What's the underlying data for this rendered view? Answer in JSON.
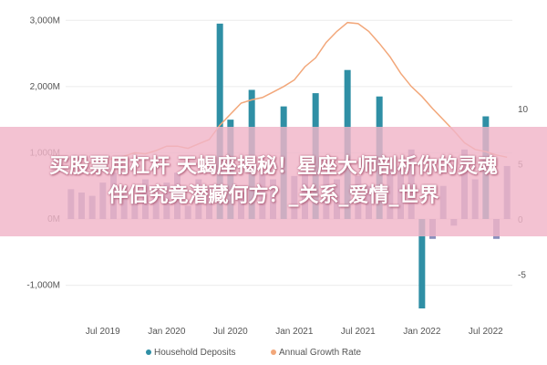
{
  "overlay": {
    "line1": "买股票用杠杆 天蝎座揭秘！星座大师剖析你的灵魂",
    "line2": "伴侣究竟潜藏何方？_关系_爱情_世界"
  },
  "chart_data": {
    "type": "bar",
    "title": "",
    "x_tick_labels": [
      "Jul 2019",
      "Jan 2020",
      "Jul 2020",
      "Jan 2021",
      "Jul 2021",
      "Jan 2022",
      "Jul 2022"
    ],
    "x_tick_index": [
      3,
      9,
      15,
      21,
      27,
      33,
      39
    ],
    "left_axis": {
      "ticks": [
        -1000,
        0,
        1000,
        2000,
        3000
      ],
      "tick_labels": [
        "-1,000M",
        "0M",
        "1,000M",
        "2,000M",
        "3,000M"
      ],
      "ylim": [
        -1350,
        3100
      ]
    },
    "right_axis": {
      "ticks": [
        -5,
        0,
        5,
        10
      ],
      "tick_labels": [
        "-5",
        "0",
        "5",
        "10"
      ],
      "ylim": [
        -8.1,
        18.6
      ]
    },
    "legend_position": "bottom",
    "series": [
      {
        "name": "Household Deposits",
        "type": "bar",
        "axis": "left",
        "color": "#2f8fa5",
        "values": [
          450,
          400,
          350,
          550,
          700,
          500,
          300,
          600,
          500,
          550,
          700,
          200,
          600,
          500,
          2950,
          1500,
          400,
          1950,
          700,
          600,
          1700,
          650,
          700,
          1900,
          700,
          600,
          2250,
          650,
          500,
          1850,
          750,
          800,
          1050,
          -1350,
          -300,
          500,
          -100,
          1050,
          600,
          1550,
          -300,
          800
        ]
      },
      {
        "name": "Annual Growth Rate",
        "type": "line",
        "axis": "right",
        "color": "#f2a77a",
        "values": [
          4.9,
          5.0,
          5.1,
          5.2,
          5.5,
          5.7,
          6.0,
          5.9,
          6.2,
          6.6,
          6.6,
          6.4,
          6.8,
          7.2,
          8.5,
          9.5,
          10.5,
          10.8,
          11.0,
          11.5,
          12.0,
          12.6,
          13.8,
          14.6,
          16.0,
          17.0,
          17.8,
          17.7,
          17.0,
          15.9,
          14.7,
          13.2,
          12.0,
          11.1,
          10.0,
          9.0,
          8.0,
          6.9,
          6.3,
          6.1,
          5.8,
          5.6
        ]
      }
    ],
    "bar_color_light": "#8a8fbd"
  }
}
